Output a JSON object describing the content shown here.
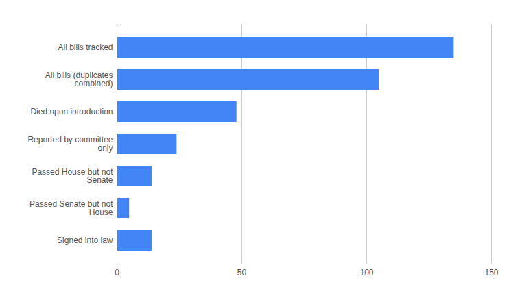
{
  "chart_data": {
    "type": "bar",
    "orientation": "horizontal",
    "categories": [
      "All bills tracked",
      "All bills (duplicates combined)",
      "Died upon introduction",
      "Reported by committee only",
      "Passed House but not Senate",
      "Passed Senate but not House",
      "Signed into law"
    ],
    "values": [
      135,
      105,
      48,
      24,
      14,
      5,
      14
    ],
    "color": "#4285f4",
    "xlim": [
      0,
      150
    ],
    "xticks": [
      0,
      50,
      100,
      150
    ],
    "grid": true
  }
}
